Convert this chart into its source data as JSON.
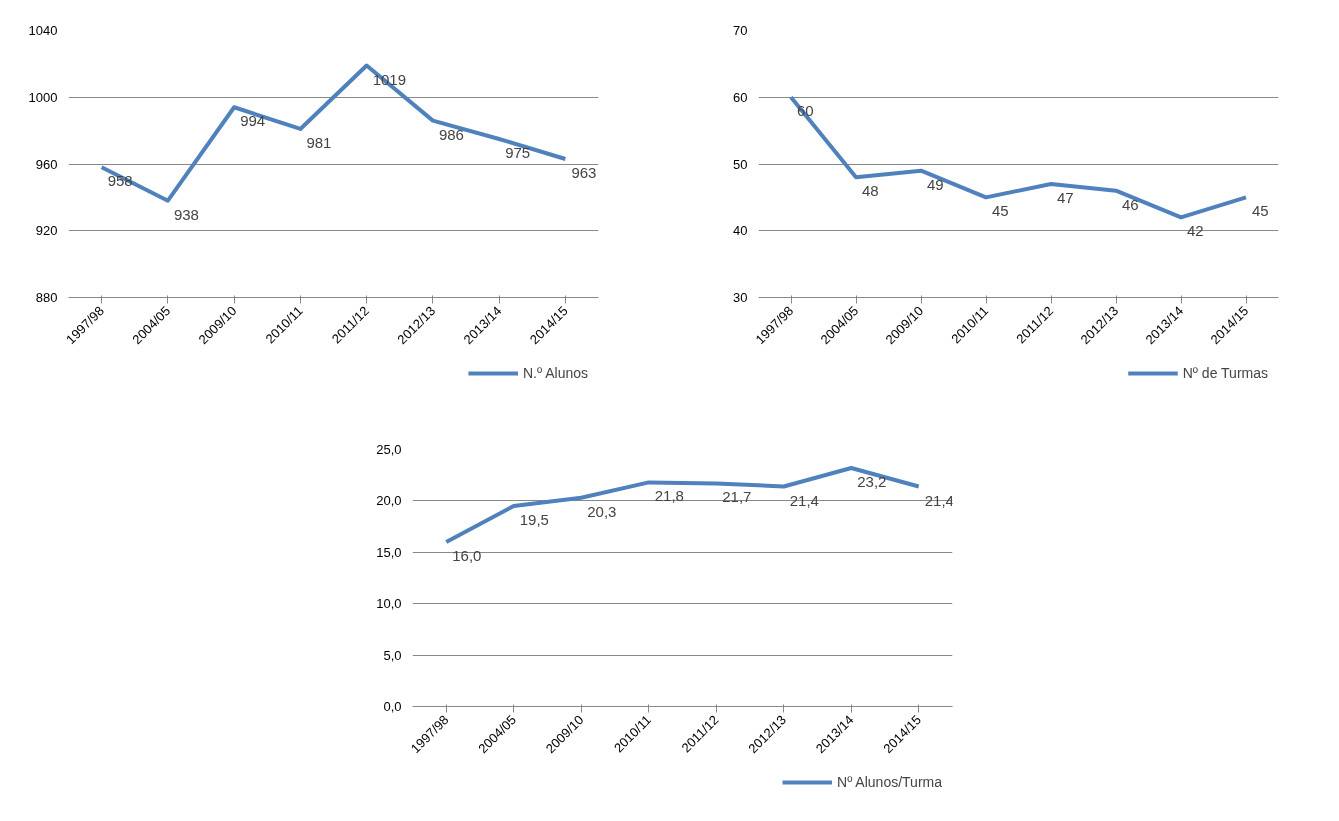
{
  "chart_data": [
    {
      "type": "line",
      "categories": [
        "1997/98",
        "2004/05",
        "2009/10",
        "2010/11",
        "2011/12",
        "2012/13",
        "2013/14",
        "2014/15"
      ],
      "series": [
        {
          "name": "N.º Alunos",
          "color": "#4f81bd",
          "values": [
            958,
            938,
            994,
            981,
            1019,
            986,
            975,
            963
          ]
        }
      ],
      "ylim": [
        880,
        1040
      ],
      "yticks": [
        880,
        920,
        960,
        1000,
        1040
      ],
      "grid": "y",
      "legend": "bottom",
      "data_labels": true
    },
    {
      "type": "line",
      "categories": [
        "1997/98",
        "2004/05",
        "2009/10",
        "2010/11",
        "2011/12",
        "2012/13",
        "2013/14",
        "2014/15"
      ],
      "series": [
        {
          "name": "Nº de Turmas",
          "color": "#4f81bd",
          "values": [
            60,
            48,
            49,
            45,
            47,
            46,
            42,
            45
          ]
        }
      ],
      "ylim": [
        30,
        70
      ],
      "yticks": [
        30,
        40,
        50,
        60,
        70
      ],
      "grid": "y",
      "legend": "bottom",
      "data_labels": true
    },
    {
      "type": "line",
      "categories": [
        "1997/98",
        "2004/05",
        "2009/10",
        "2010/11",
        "2011/12",
        "2012/13",
        "2013/14",
        "2014/15"
      ],
      "series": [
        {
          "name": "Nº Alunos/Turma",
          "color": "#4f81bd",
          "values": [
            16.0,
            19.5,
            20.3,
            21.8,
            21.7,
            21.4,
            23.2,
            21.4
          ],
          "value_labels": [
            "16,0",
            "19,5",
            "20,3",
            "21,8",
            "21,7",
            "21,4",
            "23,2",
            "21,4"
          ]
        }
      ],
      "ylim": [
        0,
        25
      ],
      "yticks": [
        {
          "value": 0,
          "label": "0,0"
        },
        {
          "value": 5,
          "label": "5,0"
        },
        {
          "value": 10,
          "label": "10,0"
        },
        {
          "value": 15,
          "label": "15,0"
        },
        {
          "value": 20,
          "label": "20,0"
        },
        {
          "value": 25,
          "label": "25,0"
        }
      ],
      "grid": "y",
      "legend": "bottom"
    }
  ]
}
